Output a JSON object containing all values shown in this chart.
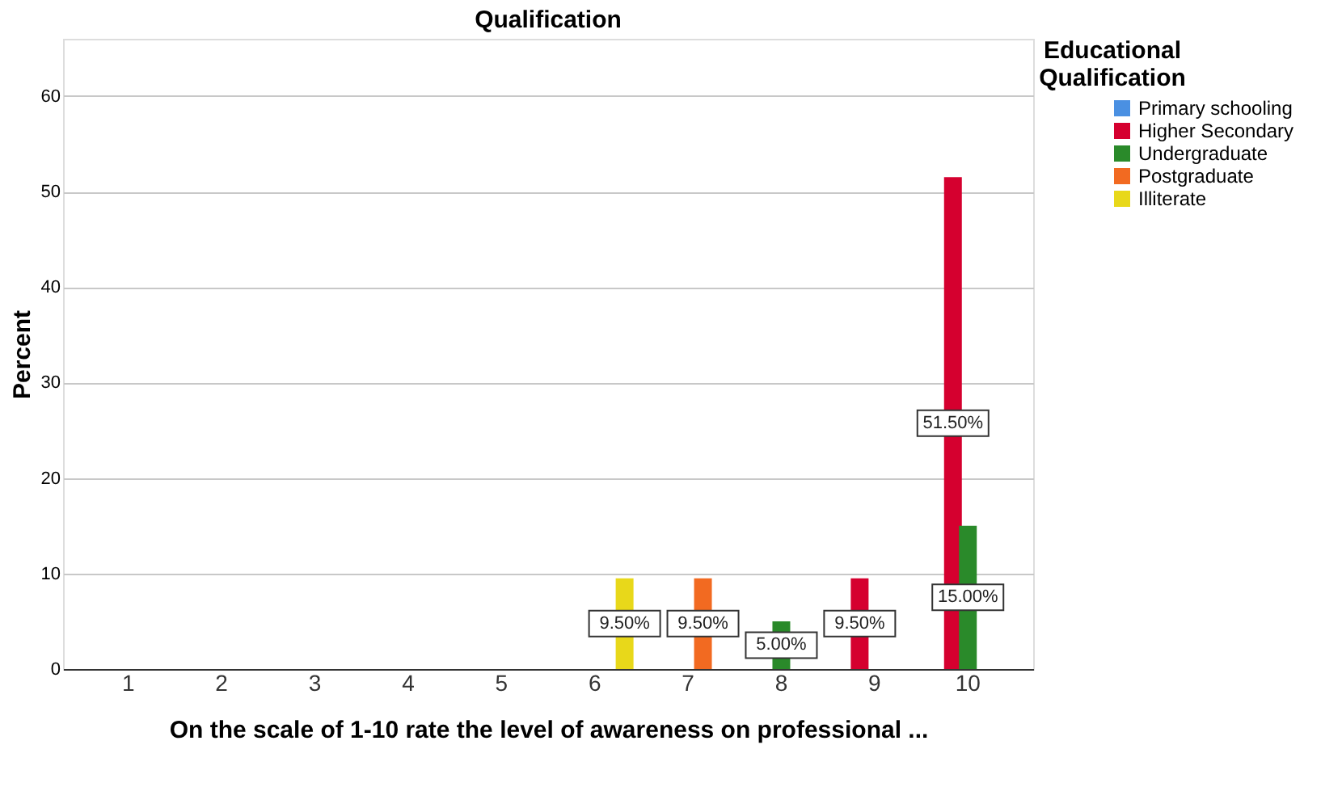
{
  "chart_data": {
    "type": "bar",
    "title": "Qualification",
    "xlabel": "On the scale of 1-10 rate the level of awareness on professional ...",
    "ylabel": "Percent",
    "legend_title": "Educational Qualification",
    "categories": [
      "1",
      "2",
      "3",
      "4",
      "5",
      "6",
      "7",
      "8",
      "9",
      "10"
    ],
    "series": [
      {
        "name": "Primary schooling",
        "color": "#4a90e2",
        "values": [
          null,
          null,
          null,
          null,
          null,
          null,
          null,
          null,
          null,
          null
        ]
      },
      {
        "name": "Higher Secondary",
        "color": "#d5002f",
        "values": [
          null,
          null,
          null,
          null,
          null,
          null,
          null,
          null,
          9.5,
          51.5
        ],
        "value_labels": [
          null,
          null,
          null,
          null,
          null,
          null,
          null,
          null,
          "9.50%",
          "51.50%"
        ]
      },
      {
        "name": "Undergraduate",
        "color": "#2a8a2a",
        "values": [
          null,
          null,
          null,
          null,
          null,
          null,
          null,
          5.0,
          null,
          15.0
        ],
        "value_labels": [
          null,
          null,
          null,
          null,
          null,
          null,
          null,
          "5.00%",
          null,
          "15.00%"
        ]
      },
      {
        "name": "Postgraduate",
        "color": "#f26a21",
        "values": [
          null,
          null,
          null,
          null,
          null,
          null,
          9.5,
          null,
          null,
          null
        ],
        "value_labels": [
          null,
          null,
          null,
          null,
          null,
          null,
          "9.50%",
          null,
          null,
          null
        ]
      },
      {
        "name": "Illiterate",
        "color": "#e8d81a",
        "values": [
          null,
          null,
          null,
          null,
          null,
          9.5,
          null,
          null,
          null,
          null
        ],
        "value_labels": [
          null,
          null,
          null,
          null,
          null,
          "9.50%",
          null,
          null,
          null,
          null
        ]
      }
    ],
    "ylim": [
      0,
      66
    ],
    "yticks": [
      0,
      10,
      20,
      30,
      40,
      50,
      60
    ],
    "grid": "y",
    "legend": "top right"
  }
}
